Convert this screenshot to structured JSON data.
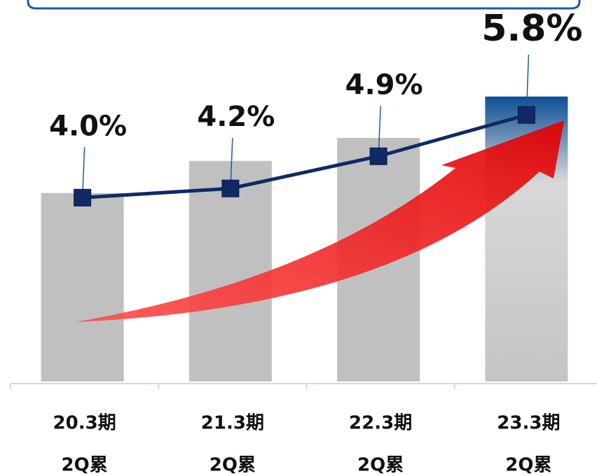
{
  "chart_data": {
    "type": "bar-line",
    "categories": [
      [
        "20.3期",
        "2Q累"
      ],
      [
        "21.3期",
        "2Q累"
      ],
      [
        "22.3期",
        "2Q累"
      ],
      [
        "23.3期",
        "2Q累"
      ]
    ],
    "ylim": [
      0,
      8.3
    ],
    "series": [
      {
        "type": "bar",
        "color": "#c0c0c0",
        "values": [
          4.1,
          4.8,
          5.3,
          6.2
        ]
      },
      {
        "type": "line",
        "color": "#0f2a66",
        "values": [
          4.0,
          4.2,
          4.9,
          5.8
        ],
        "value_labels": [
          "4.0%",
          "4.2%",
          "4.9%",
          "5.8%"
        ]
      }
    ]
  }
}
